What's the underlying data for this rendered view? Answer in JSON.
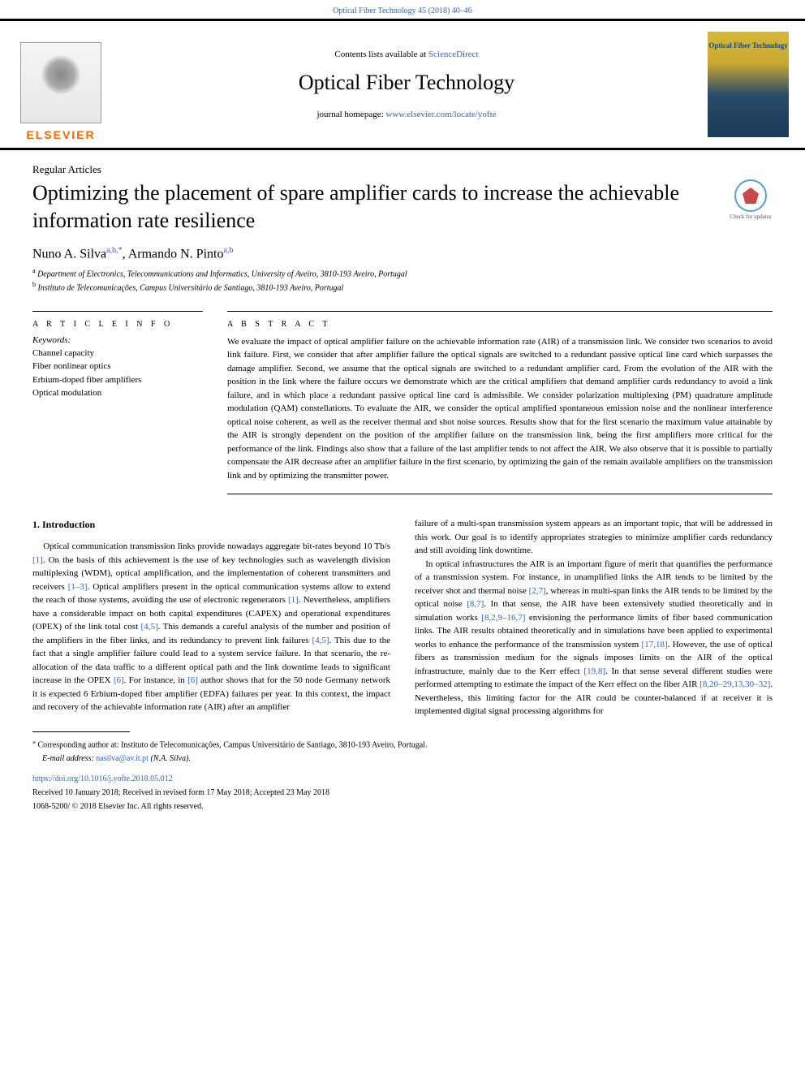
{
  "header": {
    "top_link_journal": "Optical Fiber Technology 45 (2018) 40–46",
    "contents_prefix": "Contents lists available at ",
    "contents_link": "ScienceDirect",
    "journal_title": "Optical Fiber Technology",
    "homepage_prefix": "journal homepage: ",
    "homepage_url": "www.elsevier.com/locate/yofte",
    "elsevier_name": "ELSEVIER",
    "cover_title": "Optical Fiber Technology"
  },
  "article": {
    "type": "Regular Articles",
    "title": "Optimizing the placement of spare amplifier cards to increase the achievable information rate resilience",
    "check_updates": "Check for updates",
    "authors_html": "Nuno A. Silva<sup>a,b,*</sup>, Armando N. Pinto<sup>a,b</sup>",
    "affiliations": [
      {
        "sup": "a",
        "text": "Department of Electronics, Telecommunications and Informatics, University of Aveiro, 3810-193 Aveiro, Portugal"
      },
      {
        "sup": "b",
        "text": "Instituto de Telecomunicações, Campus Universitário de Santiago, 3810-193 Aveiro, Portugal"
      }
    ]
  },
  "info": {
    "article_info_label": "A R T I C L E  I N F O",
    "keywords_label": "Keywords:",
    "keywords": [
      "Channel capacity",
      "Fiber nonlinear optics",
      "Erbium-doped fiber amplifiers",
      "Optical modulation"
    ]
  },
  "abstract": {
    "label": "A B S T R A C T",
    "text": "We evaluate the impact of optical amplifier failure on the achievable information rate (AIR) of a transmission link. We consider two scenarios to avoid link failure. First, we consider that after amplifier failure the optical signals are switched to a redundant passive optical line card which surpasses the damage amplifier. Second, we assume that the optical signals are switched to a redundant amplifier card. From the evolution of the AIR with the position in the link where the failure occurs we demonstrate which are the critical amplifiers that demand amplifier cards redundancy to avoid a link failure, and in which place a redundant passive optical line card is admissible. We consider polarization multiplexing (PM) quadrature amplitude modulation (QAM) constellations. To evaluate the AIR, we consider the optical amplified spontaneous emission noise and the nonlinear interference optical noise coherent, as well as the receiver thermal and shot noise sources. Results show that for the first scenario the maximum value attainable by the AIR is strongly dependent on the position of the amplifier failure on the transmission link, being the first amplifiers more critical for the performance of the link. Findings also show that a failure of the last amplifier tends to not affect the AIR. We also observe that it is possible to partially compensate the AIR decrease after an amplifier failure in the first scenario, by optimizing the gain of the remain available amplifiers on the transmission link and by optimizing the transmitter power."
  },
  "body": {
    "section_heading": "1. Introduction",
    "col1": "Optical communication transmission links provide nowadays aggregate bit-rates beyond 10 Tb/s [1]. On the basis of this achievement is the use of key technologies such as wavelength division multiplexing (WDM), optical amplification, and the implementation of coherent transmitters and receivers [1–3]. Optical amplifiers present in the optical communication systems allow to extend the reach of those systems, avoiding the use of electronic regenerators [1]. Nevertheless, amplifiers have a considerable impact on both capital expenditures (CAPEX) and operational expenditures (OPEX) of the link total cost [4,5]. This demands a careful analysis of the number and position of the amplifiers in the fiber links, and its redundancy to prevent link failures [4,5]. This due to the fact that a single amplifier failure could lead to a system service failure. In that scenario, the re-allocation of the data traffic to a different optical path and the link downtime leads to significant increase in the OPEX [6]. For instance, in [6] author shows that for the 50 node Germany network it is expected 6 Erbium-doped fiber amplifier (EDFA) failures per year. In this context, the impact and recovery of the achievable information rate (AIR) after an amplifier",
    "col2_p1": "failure of a multi-span transmission system appears as an important topic, that will be addressed in this work. Our goal is to identify appropriates strategies to minimize amplifier cards redundancy and still avoiding link downtime.",
    "col2_p2": "In optical infrastructures the AIR is an important figure of merit that quantifies the performance of a transmission system. For instance, in unamplified links the AIR tends to be limited by the receiver shot and thermal noise [2,7], whereas in multi-span links the AIR tends to be limited by the optical noise [8,7]. In that sense, the AIR have been extensively studied theoretically and in simulation works [8,2,9–16,7] envisioning the performance limits of fiber based communication links. The AIR results obtained theoretically and in simulations have been applied to experimental works to enhance the performance of the transmission system [17,18]. However, the use of optical fibers as transmission medium for the signals imposes limits on the AIR of the optical infrastructure, mainly due to the Kerr effect [19,8]. In that sense several different studies were performed attempting to estimate the impact of the Kerr effect on the fiber AIR [8,20–29,13,30–32]. Nevertheless, this limiting factor for the AIR could be counter-balanced if at receiver it is implemented digital signal processing algorithms for",
    "refs_col1": [
      "[1]",
      "[1–3]",
      "[1]",
      "[4,5]",
      "[4,5]",
      "[6]",
      "[6]"
    ],
    "refs_col2": [
      "[2,7]",
      "[8,7]",
      "[8,2,9–16,7]",
      "[17,18]",
      "[19,8]",
      "[8,20–29,13,30–32]"
    ]
  },
  "footer": {
    "corr_note": "Corresponding author at: Instituto de Telecomunicações, Campus Universitário de Santiago, 3810-193 Aveiro, Portugal.",
    "email_label": "E-mail address: ",
    "email": "nasilva@av.it.pt",
    "email_author": " (N.A. Silva).",
    "doi": "https://doi.org/10.1016/j.yofte.2018.05.012",
    "received": "Received 10 January 2018; Received in revised form 17 May 2018; Accepted 23 May 2018",
    "copyright": "1068-5200/ © 2018 Elsevier Inc. All rights reserved."
  },
  "colors": {
    "link": "#3366cc",
    "elsevier_orange": "#ff6600",
    "rule": "#000000"
  }
}
